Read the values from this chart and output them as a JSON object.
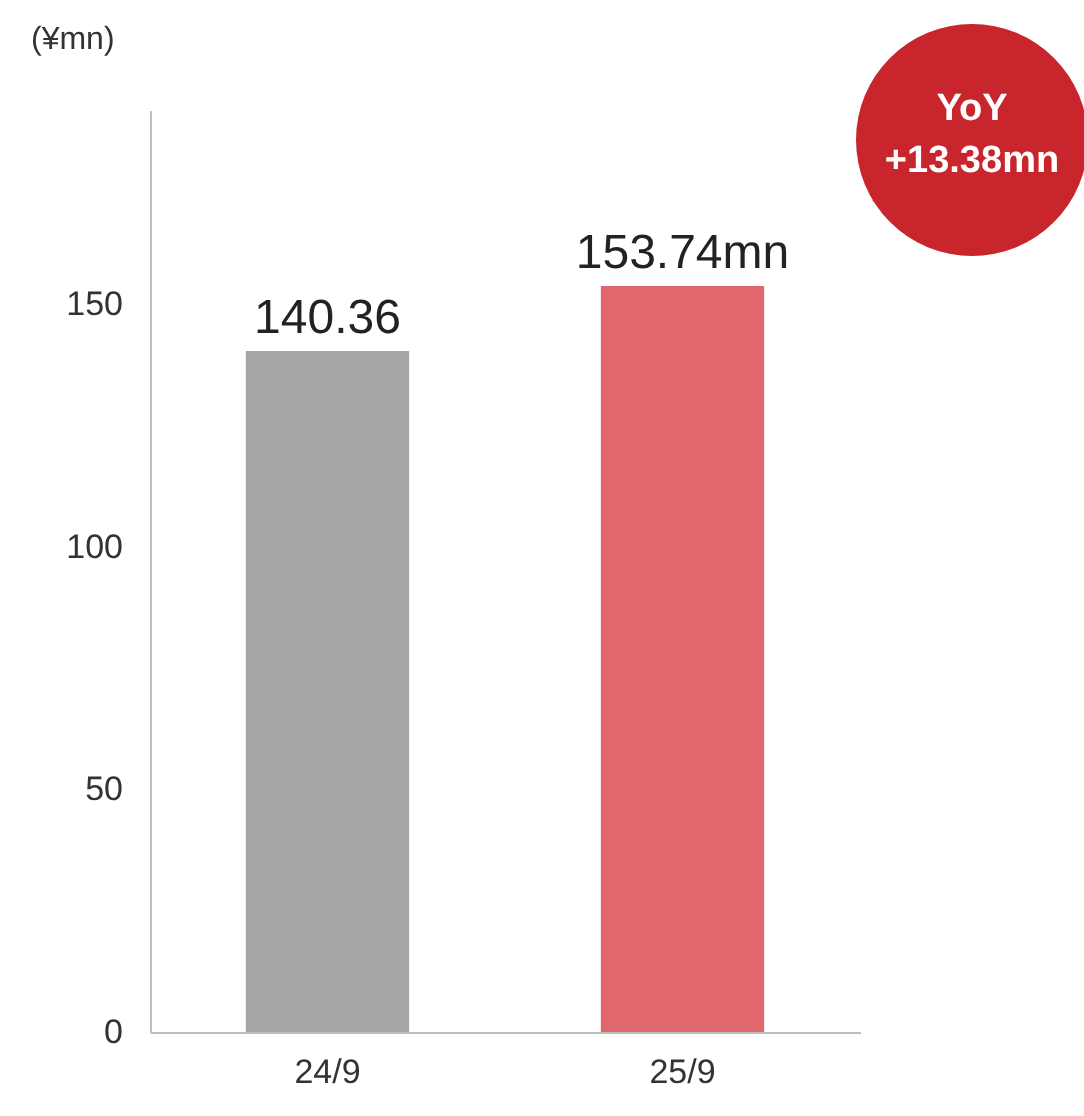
{
  "chart_data": {
    "type": "bar",
    "ylabel": "(¥mn)",
    "categories": [
      "24/9",
      "25/9"
    ],
    "values": [
      140.36,
      153.74
    ],
    "colors": [
      "#a6a6a6",
      "#e0676d"
    ],
    "value_labels": [
      "140.36",
      "153.74mn"
    ],
    "ylim": [
      0,
      190
    ],
    "yticks": [
      0,
      50,
      100,
      150
    ],
    "grid": false,
    "annotations": [
      "YoY +13.38mn"
    ]
  }
}
